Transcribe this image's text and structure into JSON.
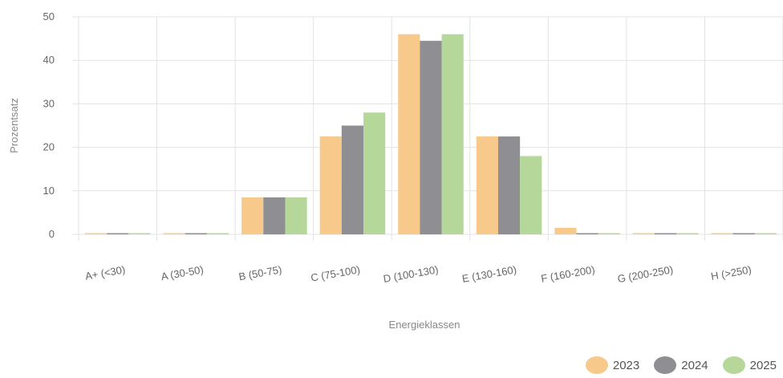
{
  "chart_data": {
    "type": "bar",
    "categories": [
      "A+ (<30)",
      "A (30-50)",
      "B (50-75)",
      "C (75-100)",
      "D (100-130)",
      "E (130-160)",
      "F (160-200)",
      "G (200-250)",
      "H (>250)"
    ],
    "series": [
      {
        "name": "2023",
        "color": "#f7c98a",
        "values": [
          0,
          0,
          8.5,
          22.5,
          46,
          22.5,
          1.5,
          0,
          0
        ]
      },
      {
        "name": "2024",
        "color": "#8e8e93",
        "values": [
          0,
          0,
          8.5,
          25,
          44.5,
          22.5,
          0,
          0,
          0
        ]
      },
      {
        "name": "2025",
        "color": "#b5d89a",
        "values": [
          0,
          0,
          8.5,
          28,
          46,
          18,
          0,
          0,
          0
        ]
      }
    ],
    "xlabel": "Energieklassen",
    "ylabel": "Prozentsatz",
    "ylim": [
      0,
      50
    ],
    "yticks": [
      0,
      10,
      20,
      30,
      40,
      50
    ],
    "grid": true,
    "legend": "bottom-right"
  }
}
